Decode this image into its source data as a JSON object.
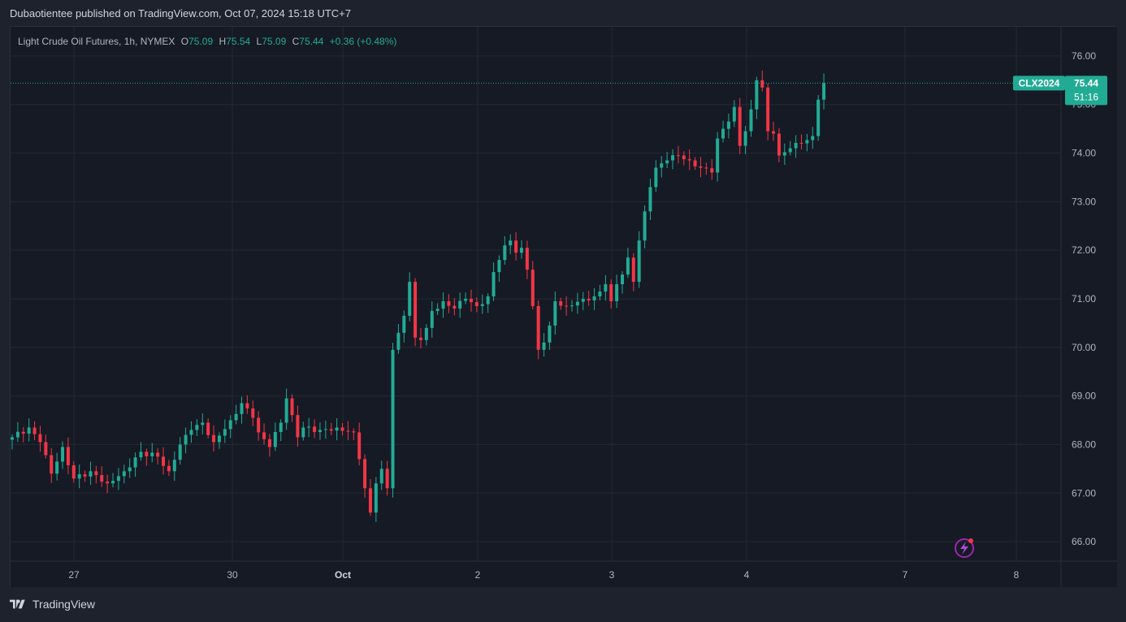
{
  "header": {
    "published_line": "Dubaotientee published on TradingView.com, Oct 07, 2024 15:18 UTC+7"
  },
  "legend": {
    "title": "Light Crude Oil Futures, 1h, NYMEX",
    "o_label": "O",
    "o_value": "75.09",
    "h_label": "H",
    "h_value": "75.54",
    "l_label": "L",
    "l_value": "75.09",
    "c_label": "C",
    "c_value": "75.44",
    "change": "+0.36 (+0.48%)"
  },
  "price_tag": {
    "symbol": "CLX2024",
    "price": "75.44",
    "countdown": "51:16"
  },
  "footer": {
    "brand": "TradingView"
  },
  "colors": {
    "up": "#22ab94",
    "down": "#f23645",
    "background": "#161a25",
    "grid": "#242833",
    "axis_text": "#b2b5be"
  },
  "icons": {
    "bottom_right": "lightning-bolt-icon",
    "footer_logo": "tradingview-logo-icon"
  },
  "chart_data": {
    "type": "candlestick",
    "interval": "1h",
    "ylim": [
      65.6,
      76.6
    ],
    "y_ticks": [
      "76.00",
      "75.00",
      "74.00",
      "73.00",
      "72.00",
      "71.00",
      "70.00",
      "69.00",
      "68.00",
      "67.00",
      "66.00"
    ],
    "x_ticks": [
      {
        "label": "27",
        "bold": false
      },
      {
        "label": "30",
        "bold": false
      },
      {
        "label": "Oct",
        "bold": true
      },
      {
        "label": "2",
        "bold": false
      },
      {
        "label": "3",
        "bold": false
      },
      {
        "label": "4",
        "bold": false
      },
      {
        "label": "7",
        "bold": false
      },
      {
        "label": "8",
        "bold": false
      }
    ],
    "last_price": 75.44,
    "grid": true,
    "anchors": [
      [
        0,
        68.15
      ],
      [
        3,
        68.35
      ],
      [
        5,
        68.05
      ],
      [
        7,
        67.4
      ],
      [
        9,
        67.95
      ],
      [
        11,
        67.3
      ],
      [
        14,
        67.45
      ],
      [
        17,
        67.2
      ],
      [
        20,
        67.45
      ],
      [
        23,
        67.85
      ],
      [
        26,
        67.75
      ],
      [
        28,
        67.45
      ],
      [
        30,
        68.0
      ],
      [
        32,
        68.3
      ],
      [
        34,
        68.45
      ],
      [
        36,
        68.05
      ],
      [
        39,
        68.5
      ],
      [
        41,
        68.85
      ],
      [
        43,
        68.55
      ],
      [
        44,
        68.25
      ],
      [
        46,
        67.95
      ],
      [
        48,
        68.45
      ],
      [
        49,
        68.95
      ],
      [
        51,
        68.15
      ],
      [
        52,
        68.35
      ],
      [
        55,
        68.3
      ],
      [
        58,
        68.35
      ],
      [
        61,
        68.25
      ],
      [
        62,
        67.7
      ],
      [
        63,
        67.1
      ],
      [
        64,
        66.6
      ],
      [
        65,
        67.2
      ],
      [
        66,
        67.5
      ],
      [
        67,
        67.1
      ],
      [
        68,
        69.95
      ],
      [
        69,
        70.3
      ],
      [
        70,
        70.65
      ],
      [
        71,
        71.35
      ],
      [
        72,
        70.2
      ],
      [
        73,
        70.15
      ],
      [
        74,
        70.4
      ],
      [
        75,
        70.75
      ],
      [
        77,
        70.95
      ],
      [
        79,
        70.8
      ],
      [
        81,
        71.0
      ],
      [
        83,
        70.85
      ],
      [
        85,
        71.05
      ],
      [
        86,
        71.55
      ],
      [
        87,
        71.8
      ],
      [
        88,
        72.1
      ],
      [
        89,
        72.2
      ],
      [
        90,
        71.95
      ],
      [
        91,
        72.05
      ],
      [
        92,
        71.6
      ],
      [
        93,
        70.85
      ],
      [
        94,
        69.95
      ],
      [
        95,
        70.1
      ],
      [
        96,
        70.45
      ],
      [
        97,
        70.95
      ],
      [
        99,
        70.85
      ],
      [
        102,
        71.0
      ],
      [
        104,
        71.05
      ],
      [
        105,
        71.15
      ],
      [
        106,
        71.3
      ],
      [
        107,
        70.95
      ],
      [
        108,
        71.3
      ],
      [
        109,
        71.5
      ],
      [
        110,
        71.85
      ],
      [
        111,
        71.35
      ],
      [
        112,
        72.2
      ],
      [
        113,
        72.8
      ],
      [
        114,
        73.3
      ],
      [
        115,
        73.7
      ],
      [
        117,
        73.85
      ],
      [
        119,
        73.95
      ],
      [
        121,
        73.85
      ],
      [
        123,
        73.7
      ],
      [
        125,
        73.6
      ],
      [
        126,
        74.3
      ],
      [
        127,
        74.5
      ],
      [
        128,
        74.65
      ],
      [
        129,
        74.95
      ],
      [
        130,
        74.15
      ],
      [
        131,
        74.45
      ],
      [
        132,
        74.9
      ],
      [
        133,
        75.5
      ],
      [
        134,
        75.35
      ],
      [
        135,
        74.45
      ],
      [
        136,
        74.4
      ],
      [
        137,
        73.95
      ],
      [
        139,
        74.1
      ],
      [
        141,
        74.2
      ],
      [
        143,
        74.35
      ],
      [
        144,
        75.1
      ],
      [
        145,
        75.44
      ]
    ]
  }
}
